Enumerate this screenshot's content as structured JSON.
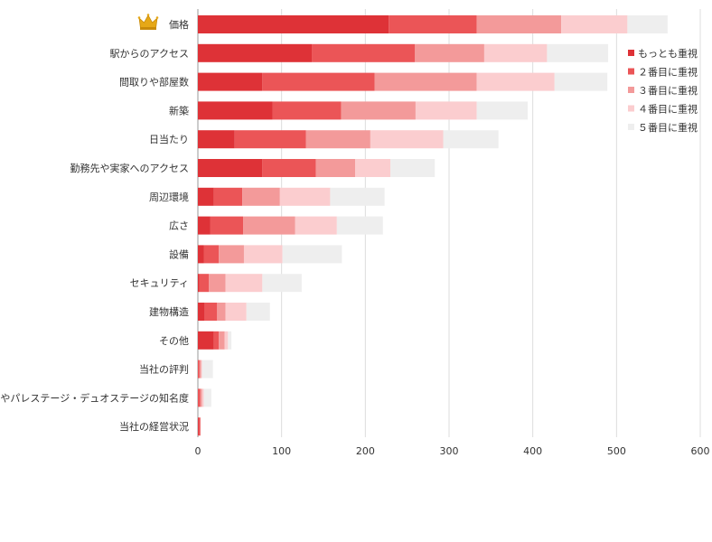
{
  "chart_data": {
    "type": "bar",
    "orientation": "horizontal",
    "stacked": true,
    "categories": [
      "価格",
      "駅からのアクセス",
      "間取りや部屋数",
      "新築",
      "日当たり",
      "勤務先や実家へのアクセス",
      "周辺環境",
      "広さ",
      "設備",
      "セキュリティ",
      "建物構造",
      "その他",
      "当社の評判",
      "当社やパレステージ・デュオステージの知名度",
      "当社の経営状況"
    ],
    "series": [
      {
        "name": "もっとも重視",
        "color": "#de3237",
        "values": [
          228,
          136,
          77,
          89,
          44,
          77,
          19,
          15,
          7,
          2,
          8,
          19,
          0,
          0,
          1
        ]
      },
      {
        "name": "２番目に重視",
        "color": "#eb5557",
        "values": [
          105,
          123,
          134,
          82,
          85,
          64,
          34,
          39,
          18,
          11,
          15,
          6,
          2,
          3,
          2
        ]
      },
      {
        "name": "３番目に重視",
        "color": "#f39a9a",
        "values": [
          101,
          83,
          122,
          89,
          77,
          47,
          45,
          62,
          30,
          20,
          10,
          7,
          2,
          2,
          0
        ]
      },
      {
        "name": "４番目に重視",
        "color": "#fbcdcf",
        "values": [
          79,
          75,
          93,
          73,
          87,
          42,
          60,
          50,
          46,
          44,
          25,
          4,
          1,
          2,
          0
        ]
      },
      {
        "name": "５番目に重視",
        "color": "#eeeeee",
        "values": [
          48,
          73,
          63,
          61,
          66,
          53,
          65,
          55,
          71,
          47,
          28,
          4,
          13,
          9,
          0
        ]
      }
    ],
    "xlim": [
      0,
      600
    ],
    "xticks": [
      0,
      100,
      200,
      300,
      400,
      500,
      600
    ],
    "grid": true,
    "legend_position": "right",
    "crown_icon": "crown-icon",
    "grid_color": "#dddddd"
  }
}
